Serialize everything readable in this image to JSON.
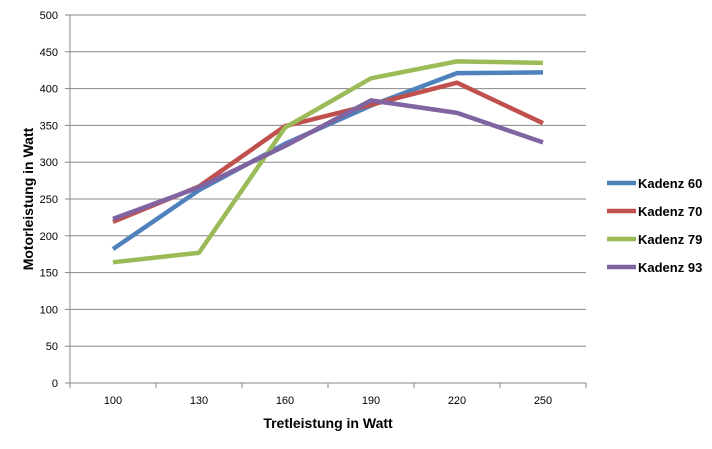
{
  "chart_data": {
    "type": "line",
    "title": "",
    "xlabel": "Tretleistung in Watt",
    "ylabel": "Motorleistung in Watt",
    "categories": [
      "100",
      "130",
      "160",
      "190",
      "220",
      "250"
    ],
    "ylim": [
      0,
      500
    ],
    "yticks": [
      0,
      50,
      100,
      150,
      200,
      250,
      300,
      350,
      400,
      450,
      500
    ],
    "grid": true,
    "legend_position": "right",
    "series": [
      {
        "name": "Kadenz 60",
        "color": "#4f81bd",
        "values": [
          182,
          262,
          325,
          377,
          421,
          422
        ]
      },
      {
        "name": "Kadenz 70",
        "color": "#c0504d",
        "values": [
          219,
          267,
          349,
          378,
          408,
          353
        ]
      },
      {
        "name": "Kadenz 79",
        "color": "#9bbb59",
        "values": [
          164,
          177,
          347,
          414,
          437,
          435
        ]
      },
      {
        "name": "Kadenz 93",
        "color": "#8064a2",
        "values": [
          223,
          266,
          322,
          384,
          367,
          327
        ]
      }
    ]
  }
}
